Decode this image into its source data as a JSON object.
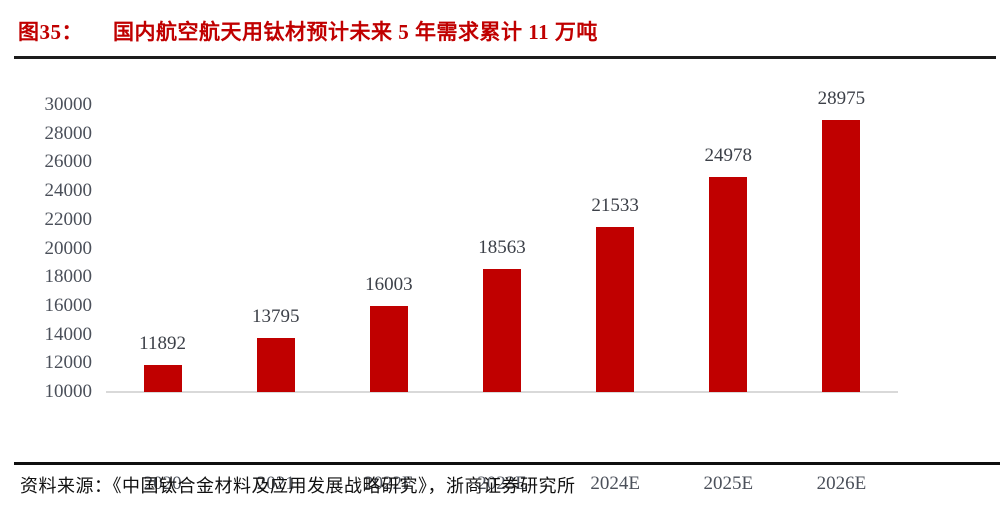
{
  "figure": {
    "label": "图35：",
    "title": "国内航空航天用钛材预计未来 5 年需求累计 11 万吨"
  },
  "chart_data": {
    "type": "bar",
    "title": "国内航空航天用钛材预计未来 5 年需求累计 11 万吨",
    "categories": [
      "2020",
      "2021",
      "2022E",
      "2023E",
      "2024E",
      "2025E",
      "2026E"
    ],
    "values": [
      11892,
      13795,
      16003,
      18563,
      21533,
      24978,
      28975
    ],
    "xlabel": "",
    "ylabel": "",
    "ylim": [
      10000,
      30000
    ],
    "ytick_step": 2000,
    "yticks": [
      10000,
      12000,
      14000,
      16000,
      18000,
      20000,
      22000,
      24000,
      26000,
      28000,
      30000
    ],
    "grid": false,
    "legend": false,
    "data_labels_shown": true,
    "bar_color": "#c00000"
  },
  "source": {
    "text": "资料来源：《中国钛合金材料及应用发展战略研究》，浙商证券研究所"
  },
  "colors": {
    "accent_red": "#c00000",
    "axis_line": "#d9d9d9",
    "divider_dark": "#1c1c1c",
    "axis_label_text": "#4b505a",
    "value_label_text": "#3c4048"
  }
}
